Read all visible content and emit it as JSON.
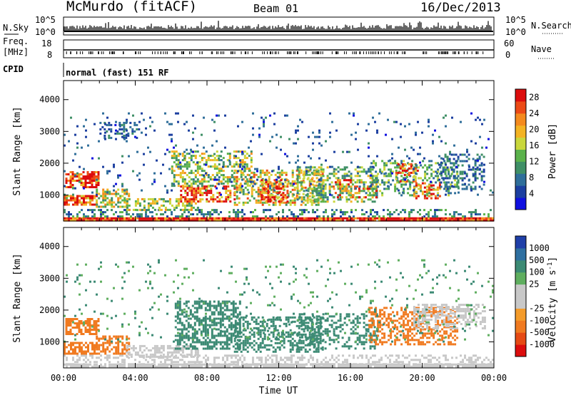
{
  "header": {
    "station": "McMurdo (fitACF)",
    "beam": "Beam 01",
    "date": "16/Dec/2013"
  },
  "top_panels": {
    "nsky_label": "N.Sky",
    "nsky_ticks": [
      "10^5",
      "10^0"
    ],
    "nsearch_label": "N.Search",
    "nsearch_ticks": [
      "10^5",
      "10^0"
    ],
    "freq_label_1": "Freq.",
    "freq_label_2": "[MHz]",
    "freq_ticks": [
      "18",
      "8"
    ],
    "nave_label": "Nave",
    "nave_ticks": [
      "60",
      "0"
    ],
    "cpid_label": "CPID",
    "cpid_text": "normal (fast) 151 RF"
  },
  "colors": {
    "power_scale": [
      "#1010e0",
      "#1c3fa0",
      "#2f6e9a",
      "#3f8f66",
      "#5bb24b",
      "#c9d73c",
      "#f3b323",
      "#f48a1e",
      "#ec4a16",
      "#dc0d0d"
    ],
    "velocity_scale": [
      "#dc0d0d",
      "#e64a14",
      "#f07a20",
      "#f49b2a",
      "#c8c8c8",
      "#c8c8c8",
      "#5fae5f",
      "#3c8a74",
      "#2e6fa0",
      "#1f3fa8"
    ]
  },
  "chart_data": [
    {
      "type": "heatmap",
      "title": "",
      "xlabel": "",
      "ylabel": "Slant Range [km]",
      "x_ticks": [
        "00:00",
        "04:00",
        "08:00",
        "12:00",
        "16:00",
        "20:00",
        "00:00"
      ],
      "y_ticks": [
        "1000",
        "2000",
        "3000",
        "4000"
      ],
      "ylim": [
        180,
        4600
      ],
      "xlim_hours": [
        0,
        24
      ],
      "colorbar_label": "Power [dB]",
      "colorbar_ticks": [
        "4",
        "8",
        "12",
        "16",
        "20",
        "24",
        "28"
      ],
      "colorbar_range": [
        0,
        30
      ],
      "regions": [
        {
          "t": [
            0.0,
            24.0
          ],
          "r": [
            190,
            300
          ],
          "v": 29,
          "d": 0.98
        },
        {
          "t": [
            0.0,
            24.0
          ],
          "r": [
            300,
            560
          ],
          "v": 9,
          "d": 0.35
        },
        {
          "t": [
            0.1,
            1.9
          ],
          "r": [
            1250,
            1750
          ],
          "v": 26,
          "d": 0.7
        },
        {
          "t": [
            0.0,
            1.8
          ],
          "r": [
            700,
            1000
          ],
          "v": 24,
          "d": 0.75
        },
        {
          "t": [
            1.8,
            3.6
          ],
          "r": [
            650,
            1200
          ],
          "v": 17,
          "d": 0.55
        },
        {
          "t": [
            2.0,
            4.2
          ],
          "r": [
            2800,
            3300
          ],
          "v": 7,
          "d": 0.35
        },
        {
          "t": [
            3.5,
            7.5
          ],
          "r": [
            500,
            900
          ],
          "v": 15,
          "d": 0.5
        },
        {
          "t": [
            6.5,
            9.5
          ],
          "r": [
            800,
            1300
          ],
          "v": 26,
          "d": 0.6
        },
        {
          "t": [
            6.0,
            10.5
          ],
          "r": [
            1300,
            2400
          ],
          "v": 15,
          "d": 0.45
        },
        {
          "t": [
            9.5,
            14.5
          ],
          "r": [
            700,
            1800
          ],
          "v": 18,
          "d": 0.45
        },
        {
          "t": [
            11.0,
            12.5
          ],
          "r": [
            800,
            1500
          ],
          "v": 26,
          "d": 0.55
        },
        {
          "t": [
            13.0,
            17.5
          ],
          "r": [
            800,
            1900
          ],
          "v": 14,
          "d": 0.4
        },
        {
          "t": [
            15.0,
            17.5
          ],
          "r": [
            900,
            1500
          ],
          "v": 22,
          "d": 0.4
        },
        {
          "t": [
            17.0,
            22.0
          ],
          "r": [
            1000,
            2100
          ],
          "v": 12,
          "d": 0.35
        },
        {
          "t": [
            18.5,
            19.8
          ],
          "r": [
            1400,
            2000
          ],
          "v": 22,
          "d": 0.4
        },
        {
          "t": [
            19.5,
            21.0
          ],
          "r": [
            900,
            1400
          ],
          "v": 26,
          "d": 0.4
        },
        {
          "t": [
            21.0,
            23.5
          ],
          "r": [
            1200,
            2300
          ],
          "v": 8,
          "d": 0.4
        },
        {
          "t": [
            0.0,
            24.0
          ],
          "r": [
            1000,
            3600
          ],
          "v": 6,
          "d": 0.05
        }
      ]
    },
    {
      "type": "heatmap",
      "title": "",
      "xlabel": "Time UT",
      "ylabel": "Slant Range [km]",
      "x_ticks": [
        "00:00",
        "04:00",
        "08:00",
        "12:00",
        "16:00",
        "20:00",
        "00:00"
      ],
      "y_ticks": [
        "1000",
        "2000",
        "3000",
        "4000"
      ],
      "ylim": [
        180,
        4600
      ],
      "xlim_hours": [
        0,
        24
      ],
      "colorbar_label": "Velocity [m s^-1]",
      "colorbar_ticks": [
        "-1000",
        "-500",
        "-100",
        "-25",
        "25",
        "100",
        "500",
        "1000"
      ],
      "regions": [
        {
          "t": [
            0.0,
            24.0
          ],
          "r": [
            190,
            320
          ],
          "v": 0,
          "d": 0.9
        },
        {
          "t": [
            0.0,
            24.0
          ],
          "r": [
            320,
            600
          ],
          "v": 0,
          "d": 0.4
        },
        {
          "t": [
            0.1,
            1.9
          ],
          "r": [
            1250,
            1750
          ],
          "v": -300,
          "d": 0.7
        },
        {
          "t": [
            0.0,
            1.8
          ],
          "r": [
            650,
            1000
          ],
          "v": -300,
          "d": 0.75
        },
        {
          "t": [
            1.8,
            3.6
          ],
          "r": [
            650,
            1200
          ],
          "v": -250,
          "d": 0.55
        },
        {
          "t": [
            3.5,
            7.5
          ],
          "r": [
            500,
            900
          ],
          "v": 0,
          "d": 0.5
        },
        {
          "t": [
            6.2,
            9.8
          ],
          "r": [
            800,
            2300
          ],
          "v": 200,
          "d": 0.55
        },
        {
          "t": [
            9.5,
            14.5
          ],
          "r": [
            700,
            1800
          ],
          "v": 300,
          "d": 0.45
        },
        {
          "t": [
            13.0,
            17.5
          ],
          "r": [
            800,
            1900
          ],
          "v": 150,
          "d": 0.35
        },
        {
          "t": [
            17.0,
            22.0
          ],
          "r": [
            900,
            2100
          ],
          "v": -250,
          "d": 0.45
        },
        {
          "t": [
            19.5,
            23.5
          ],
          "r": [
            1400,
            2200
          ],
          "v": 0,
          "d": 0.5
        },
        {
          "t": [
            0.0,
            24.0
          ],
          "r": [
            1000,
            3600
          ],
          "v": 100,
          "d": 0.05
        }
      ]
    }
  ]
}
